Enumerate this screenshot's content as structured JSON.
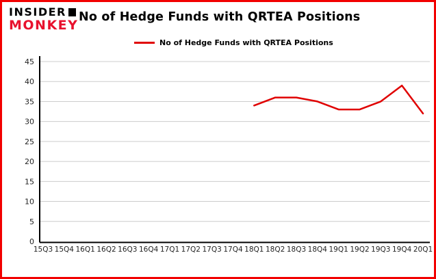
{
  "logo": {
    "line1": "INSIDER",
    "line2": "MONKEY"
  },
  "title": "No of Hedge Funds with QRTEA Positions",
  "legend": {
    "label": "No of Hedge Funds with QRTEA Positions",
    "color": "#e00000"
  },
  "colors": {
    "border": "#f20000",
    "grid": "#cccccc",
    "axis": "#000000",
    "background": "#ffffff"
  },
  "chart_data": {
    "type": "line",
    "title": "No of Hedge Funds with QRTEA Positions",
    "categories": [
      "15Q3",
      "15Q4",
      "16Q1",
      "16Q2",
      "16Q3",
      "16Q4",
      "17Q1",
      "17Q2",
      "17Q3",
      "17Q4",
      "18Q1",
      "18Q2",
      "18Q3",
      "18Q4",
      "19Q1",
      "19Q2",
      "19Q3",
      "19Q4",
      "20Q1"
    ],
    "series": [
      {
        "name": "No of Hedge Funds with QRTEA Positions",
        "color": "#e00000",
        "values": [
          null,
          null,
          null,
          null,
          null,
          null,
          null,
          null,
          null,
          null,
          34,
          36,
          36,
          35,
          33,
          33,
          35,
          39,
          32
        ]
      }
    ],
    "ylim": [
      0,
      45
    ],
    "ytick_step": 5,
    "grid": true,
    "legend_position": "top",
    "xlabel": "",
    "ylabel": ""
  }
}
